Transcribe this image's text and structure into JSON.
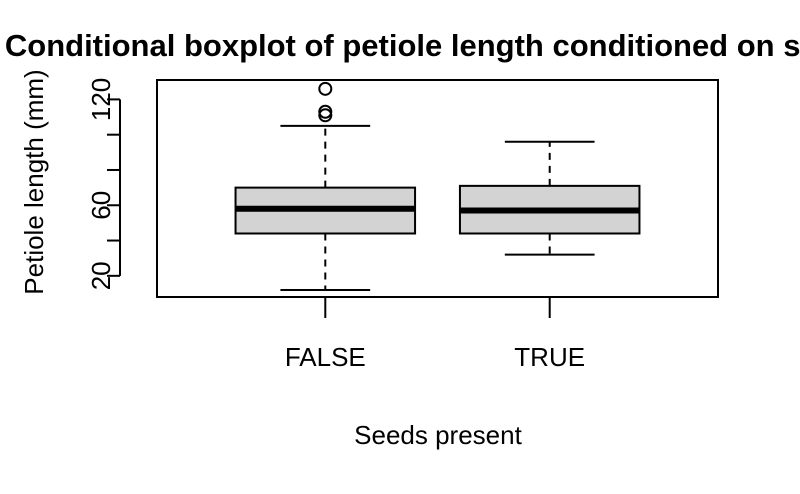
{
  "chart_data": {
    "type": "boxplot",
    "title": "Conditional boxplot of petiole length conditioned on seeds",
    "xlabel": "Seeds present",
    "ylabel": "Petiole length (mm)",
    "ylim": [
      8,
      131
    ],
    "y_ticks": [
      20,
      40,
      60,
      80,
      100,
      120
    ],
    "y_tick_labels": [
      "20",
      "",
      "60",
      "",
      "",
      "120"
    ],
    "grid": false,
    "legend": "none",
    "categories": [
      "FALSE",
      "TRUE"
    ],
    "boxes": [
      {
        "category": "FALSE",
        "whisker_low": 12,
        "q1": 44,
        "median": 58,
        "q3": 70,
        "whisker_high": 105,
        "outliers": [
          111,
          113,
          126
        ]
      },
      {
        "category": "TRUE",
        "whisker_low": 32,
        "q1": 44,
        "median": 57,
        "q3": 71,
        "whisker_high": 96,
        "outliers": []
      }
    ],
    "colors": {
      "box_fill": "#d3d3d3",
      "stroke": "#000000"
    }
  }
}
